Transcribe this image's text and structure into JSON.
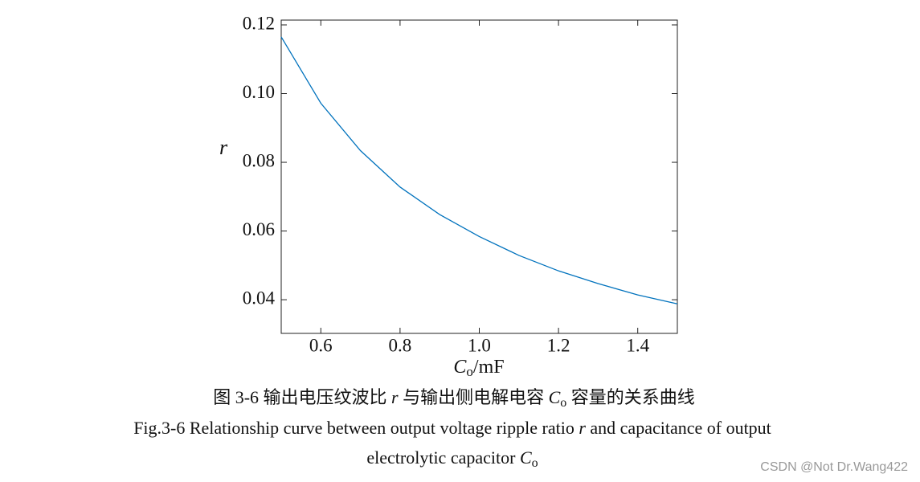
{
  "chart_data": {
    "type": "line",
    "x": [
      0.5,
      0.6,
      0.7,
      0.8,
      0.9,
      1.0,
      1.1,
      1.2,
      1.3,
      1.4,
      1.5
    ],
    "values": [
      0.1165,
      0.0972,
      0.0834,
      0.0728,
      0.0648,
      0.0584,
      0.0529,
      0.0484,
      0.0447,
      0.0414,
      0.0388
    ],
    "color": "#0072bd",
    "xlim": [
      0.5,
      1.5
    ],
    "ylim": [
      0.0302,
      0.1214
    ],
    "xticks": [
      0.6,
      0.8,
      {
        "value": 1.0,
        "label": "1.0"
      },
      1.2,
      1.4
    ],
    "yticks": [
      {
        "value": 0.04,
        "label": "0.04"
      },
      {
        "value": 0.06,
        "label": "0.06"
      },
      {
        "value": 0.08,
        "label": "0.08"
      },
      {
        "value": 0.1,
        "label": "0.10"
      },
      0.12
    ],
    "y_label": "r",
    "x_label": {
      "symbol": "C",
      "subscript": "o",
      "rest": "/mF"
    }
  },
  "caption": {
    "cn": [
      "图 3-6  输出电压纹波比 ",
      "r",
      " 与输出侧电解电容 ",
      "C",
      "o",
      " 容量的关系曲线"
    ],
    "en_line1": [
      "Fig.3-6 Relationship curve between output voltage ripple ratio ",
      "r",
      " and capacitance of output"
    ],
    "en_line2": [
      "electrolytic capacitor ",
      "C",
      "o"
    ]
  },
  "watermark": "CSDN @Not Dr.Wang422"
}
